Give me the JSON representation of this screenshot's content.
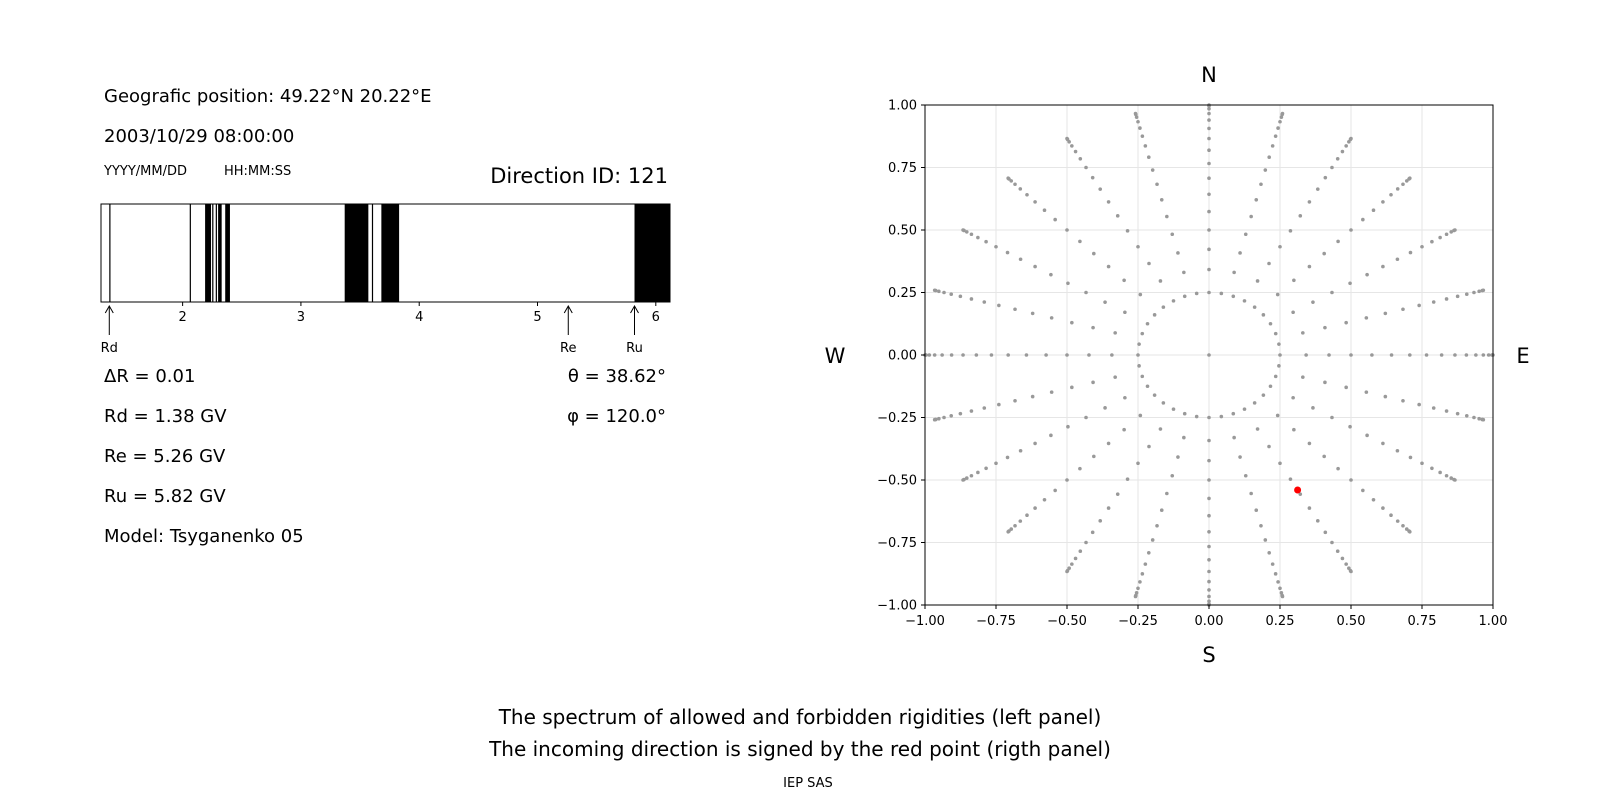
{
  "left_panel": {
    "position_line": "Geografic position: 49.22°N 20.22°E",
    "datetime_line": "2003/10/29 08:00:00",
    "date_format_label": "YYYY/MM/DD",
    "time_format_label": "HH:MM:SS",
    "direction_id": "Direction ID: 121",
    "params": {
      "delta_r": "ΔR = 0.01",
      "rd": "Rd = 1.38 GV",
      "re": "Re = 5.26 GV",
      "ru": "Ru = 5.82 GV",
      "model": "Model: Tsyganenko 05",
      "theta": "θ = 38.62°",
      "phi": "φ = 120.0°"
    }
  },
  "chart_data": [
    {
      "type": "bar",
      "name": "rigidity-spectrum",
      "xlim": [
        1.31,
        6.12
      ],
      "ticks": [
        2,
        3,
        4,
        5,
        6
      ],
      "color_forbidden": "#000000",
      "color_allowed": "#ffffff",
      "forbidden_bands": [
        [
          1.38,
          1.39
        ],
        [
          2.06,
          2.07
        ],
        [
          2.19,
          2.24
        ],
        [
          2.25,
          2.26
        ],
        [
          2.28,
          2.29
        ],
        [
          2.3,
          2.33
        ],
        [
          2.36,
          2.4
        ],
        [
          3.37,
          3.57
        ],
        [
          3.6,
          3.61
        ],
        [
          3.68,
          3.83
        ],
        [
          5.82,
          6.12
        ]
      ],
      "markers": [
        {
          "label": "Rd",
          "value": 1.38
        },
        {
          "label": "Re",
          "value": 5.26
        },
        {
          "label": "Ru",
          "value": 5.82
        }
      ]
    },
    {
      "type": "scatter",
      "name": "direction-map",
      "xlim": [
        -1.0,
        1.0
      ],
      "ylim": [
        -1.0,
        1.0
      ],
      "xticks": [
        "−1.00",
        "−0.75",
        "−0.50",
        "−0.25",
        "0.00",
        "0.25",
        "0.50",
        "0.75",
        "1.00"
      ],
      "yticks": [
        "1.00",
        "0.75",
        "0.50",
        "0.25",
        "0.00",
        "−0.25",
        "−0.50",
        "−0.75",
        "−1.00"
      ],
      "tick_values": [
        -1.0,
        -0.75,
        -0.5,
        -0.25,
        0.0,
        0.25,
        0.5,
        0.75,
        1.0
      ],
      "grid": true,
      "compass": {
        "n": "N",
        "s": "S",
        "w": "W",
        "e": "E"
      },
      "grid_points": {
        "azimuth_count": 24,
        "zenith_step_deg": 5,
        "zenith_max_deg": 90,
        "inner_ring_points": 36,
        "color": "#999999"
      },
      "highlight_point": {
        "x": 0.312,
        "y": -0.54,
        "color": "#ff0000"
      }
    }
  ],
  "footer": {
    "caption_line1": "The spectrum of allowed and forbidden rigidities (left panel)",
    "caption_line2": "The incoming direction is signed by the red point (rigth panel)",
    "credit": "IEP SAS"
  }
}
